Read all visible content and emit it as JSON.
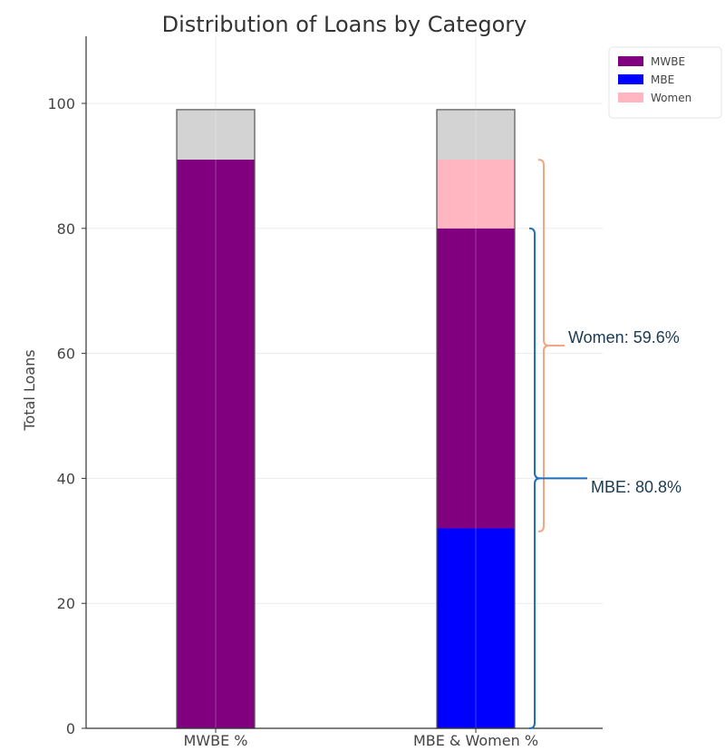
{
  "chart_data": {
    "type": "bar",
    "stacked": true,
    "title": "Distribution of Loans by Category",
    "xlabel": "",
    "ylabel": "Total Loans",
    "categories": [
      "MWBE %",
      "MBE & Women %"
    ],
    "ylim": [
      0,
      110
    ],
    "yticks": [
      0,
      20,
      40,
      60,
      80,
      100
    ],
    "grid": true,
    "legend_position": "top-right",
    "bar_total": 99,
    "remainder_color": "#d3d3d3",
    "series": [
      {
        "name": "MWBE",
        "color": "#800080",
        "segments": [
          [
            0,
            91
          ],
          [
            32,
            80
          ]
        ]
      },
      {
        "name": "MBE",
        "color": "#0000ff",
        "segments": [
          null,
          [
            0,
            32
          ]
        ]
      },
      {
        "name": "Women",
        "color": "#ffb6c1",
        "segments": [
          null,
          [
            80,
            91
          ]
        ]
      }
    ],
    "annotations": [
      {
        "text": "Women: 59.6%",
        "range": [
          31.5,
          91
        ],
        "color": "#f4a582"
      },
      {
        "text": "MBE: 80.8%",
        "range": [
          0,
          80
        ],
        "color": "#1f6fbf"
      }
    ]
  }
}
